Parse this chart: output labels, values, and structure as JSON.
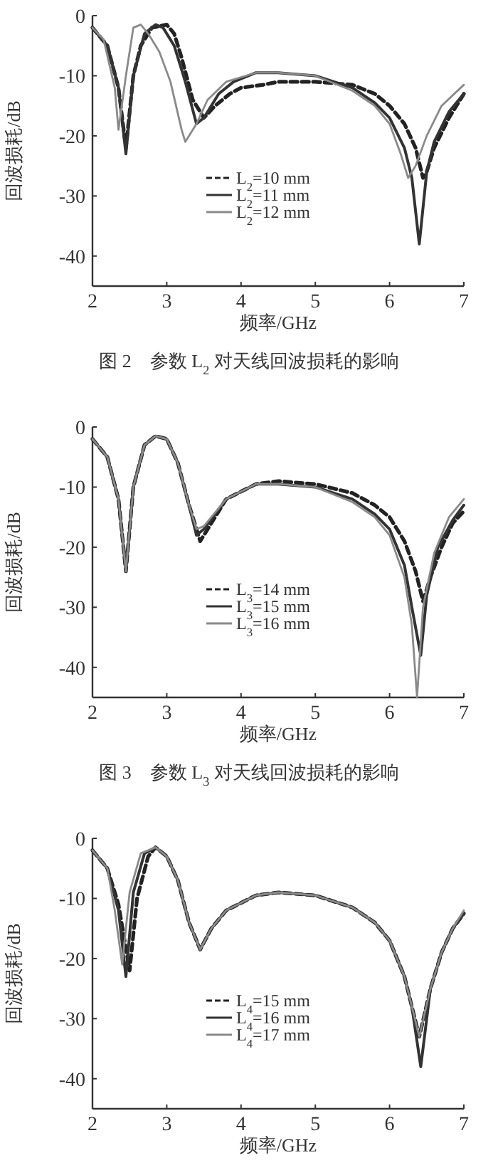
{
  "chart_data": [
    {
      "type": "line",
      "xlabel": "频率/GHz",
      "ylabel": "回波损耗/dB",
      "annotations": [
        "图 2　参数 L$_{2}$ 对天线回波损耗的影响"
      ],
      "xlim": [
        2,
        7
      ],
      "ylim": [
        -45,
        0
      ],
      "xticks": [
        2,
        3,
        4,
        5,
        6,
        7
      ],
      "yticks": [
        0,
        -10,
        -20,
        -30,
        -40
      ],
      "legend": "bottom",
      "series": [
        {
          "name": "L$_{2}$=10 mm",
          "color": "#222222",
          "line_style": "dashed",
          "x": [
            2,
            2.2,
            2.35,
            2.45,
            2.55,
            2.65,
            2.8,
            3.0,
            3.1,
            3.2,
            3.35,
            3.5,
            3.65,
            3.85,
            4.0,
            4.3,
            4.5,
            5,
            5.5,
            5.8,
            6.0,
            6.2,
            6.35,
            6.45,
            6.5,
            6.6,
            6.8,
            7
          ],
          "values": [
            -2,
            -5,
            -12,
            -22,
            -10,
            -5,
            -2,
            -1.5,
            -3,
            -7,
            -14,
            -17,
            -15,
            -13,
            -12,
            -11.5,
            -11,
            -11,
            -11.5,
            -13,
            -15,
            -18,
            -22,
            -27,
            -26,
            -22,
            -17,
            -13
          ]
        },
        {
          "name": "L$_{2}$=11 mm",
          "color": "#333333",
          "line_style": "solid",
          "x": [
            2,
            2.2,
            2.35,
            2.45,
            2.55,
            2.7,
            2.85,
            2.95,
            3.1,
            3.25,
            3.4,
            3.5,
            3.7,
            3.9,
            4.2,
            4.5,
            5,
            5.5,
            5.8,
            6.0,
            6.2,
            6.3,
            6.4,
            6.5,
            6.6,
            6.8,
            7
          ],
          "values": [
            -2,
            -5,
            -12,
            -23,
            -10,
            -3,
            -1.5,
            -2,
            -5,
            -11,
            -18,
            -17,
            -13,
            -11,
            -9.5,
            -9.5,
            -10,
            -12,
            -14.5,
            -17,
            -22,
            -27,
            -38,
            -26,
            -21,
            -16,
            -13
          ]
        },
        {
          "name": "L$_{2}$=12 mm",
          "color": "#8a8a8a",
          "line_style": "solid",
          "x": [
            2,
            2.15,
            2.3,
            2.35,
            2.45,
            2.55,
            2.65,
            2.75,
            2.9,
            3.05,
            3.2,
            3.25,
            3.4,
            3.55,
            3.8,
            4.2,
            4.5,
            5,
            5.5,
            5.8,
            6.0,
            6.15,
            6.25,
            6.35,
            6.5,
            6.7,
            7
          ],
          "values": [
            -2,
            -4,
            -12,
            -19,
            -10,
            -2,
            -1.5,
            -3,
            -6,
            -11,
            -19,
            -21,
            -18,
            -14,
            -11,
            -9.5,
            -9.5,
            -10,
            -12.5,
            -15,
            -18,
            -23,
            -27,
            -25,
            -20,
            -15,
            -11.5
          ]
        }
      ]
    },
    {
      "type": "line",
      "xlabel": "频率/GHz",
      "ylabel": "回波损耗/dB",
      "annotations": [
        "图 3　参数 L$_{3}$ 对天线回波损耗的影响"
      ],
      "xlim": [
        2,
        7
      ],
      "ylim": [
        -45,
        0
      ],
      "xticks": [
        2,
        3,
        4,
        5,
        6,
        7
      ],
      "yticks": [
        0,
        -10,
        -20,
        -30,
        -40
      ],
      "legend": "bottom",
      "series": [
        {
          "name": "L$_{3}$=14 mm",
          "color": "#222222",
          "line_style": "dashed",
          "x": [
            2,
            2.2,
            2.35,
            2.45,
            2.55,
            2.7,
            2.85,
            3.0,
            3.15,
            3.3,
            3.45,
            3.55,
            3.8,
            4.2,
            4.5,
            5,
            5.5,
            5.8,
            6.0,
            6.2,
            6.35,
            6.45,
            6.55,
            6.7,
            6.85,
            7
          ],
          "values": [
            -2,
            -5,
            -12,
            -24,
            -10,
            -3,
            -1.5,
            -2,
            -6,
            -13,
            -19,
            -17,
            -12,
            -9.5,
            -9,
            -9.5,
            -11,
            -13,
            -15,
            -19,
            -24,
            -29,
            -25,
            -20,
            -16,
            -14
          ]
        },
        {
          "name": "L$_{3}$=15 mm",
          "color": "#333333",
          "line_style": "solid",
          "x": [
            2,
            2.2,
            2.35,
            2.45,
            2.55,
            2.7,
            2.85,
            3.0,
            3.15,
            3.3,
            3.4,
            3.5,
            3.8,
            4.2,
            4.5,
            5,
            5.5,
            5.8,
            6.0,
            6.2,
            6.3,
            6.42,
            6.5,
            6.65,
            6.85,
            7
          ],
          "values": [
            -2,
            -5,
            -12,
            -24,
            -10,
            -3,
            -1.5,
            -2,
            -6,
            -13,
            -18,
            -17,
            -12,
            -9.5,
            -9.5,
            -10,
            -12,
            -14.5,
            -17,
            -23,
            -30,
            -38,
            -28,
            -20,
            -15.5,
            -13
          ]
        },
        {
          "name": "L$_{3}$=16 mm",
          "color": "#8a8a8a",
          "line_style": "solid",
          "x": [
            2,
            2.2,
            2.35,
            2.45,
            2.55,
            2.7,
            2.85,
            3.0,
            3.15,
            3.3,
            3.4,
            3.5,
            3.8,
            4.2,
            4.5,
            5,
            5.5,
            5.8,
            6.0,
            6.2,
            6.3,
            6.37,
            6.45,
            6.6,
            6.8,
            7
          ],
          "values": [
            -2,
            -5,
            -12,
            -24,
            -10,
            -3,
            -1.5,
            -2,
            -6,
            -13,
            -17,
            -16.5,
            -12,
            -9.5,
            -9.5,
            -10,
            -12.5,
            -15,
            -18,
            -25,
            -33,
            -45,
            -30,
            -21,
            -15,
            -12
          ]
        }
      ]
    },
    {
      "type": "line",
      "xlabel": "频率/GHz",
      "ylabel": "回波损耗/dB",
      "xlim": [
        2,
        7
      ],
      "ylim": [
        -45,
        0
      ],
      "xticks": [
        2,
        3,
        4,
        5,
        6,
        7
      ],
      "yticks": [
        0,
        -10,
        -20,
        -30,
        -40
      ],
      "legend": "bottom",
      "series": [
        {
          "name": "L$_{4}$=15 mm",
          "color": "#222222",
          "line_style": "dashed",
          "x": [
            2,
            2.2,
            2.35,
            2.5,
            2.6,
            2.75,
            2.85,
            3.0,
            3.15,
            3.3,
            3.45,
            3.6,
            3.8,
            4.2,
            4.5,
            5,
            5.5,
            5.8,
            6.0,
            6.2,
            6.3,
            6.4,
            6.55,
            6.7,
            6.85,
            7
          ],
          "values": [
            -2,
            -5,
            -11,
            -22,
            -10,
            -3,
            -1.5,
            -3,
            -7,
            -14,
            -18.5,
            -15,
            -12,
            -9.5,
            -9,
            -9.5,
            -11.5,
            -14,
            -17,
            -23,
            -28,
            -33,
            -25,
            -19,
            -15,
            -12.5
          ]
        },
        {
          "name": "L$_{4}$=16 mm",
          "color": "#333333",
          "line_style": "solid",
          "x": [
            2,
            2.2,
            2.35,
            2.45,
            2.55,
            2.7,
            2.85,
            3.0,
            3.15,
            3.3,
            3.45,
            3.6,
            3.8,
            4.2,
            4.5,
            5,
            5.5,
            5.8,
            6.0,
            6.2,
            6.3,
            6.42,
            6.55,
            6.7,
            6.85,
            7
          ],
          "values": [
            -2,
            -5,
            -12,
            -23,
            -9,
            -2.5,
            -1.5,
            -3,
            -7,
            -14,
            -18.5,
            -15,
            -12,
            -9.5,
            -9,
            -9.5,
            -11.5,
            -14,
            -17,
            -23,
            -28,
            -38,
            -25,
            -19,
            -15,
            -12.5
          ]
        },
        {
          "name": "L$_{4}$=17 mm",
          "color": "#8a8a8a",
          "line_style": "solid",
          "x": [
            2,
            2.2,
            2.3,
            2.4,
            2.5,
            2.65,
            2.85,
            3.0,
            3.15,
            3.3,
            3.45,
            3.6,
            3.8,
            4.2,
            4.5,
            5,
            5.5,
            5.8,
            6.0,
            6.2,
            6.3,
            6.4,
            6.55,
            6.7,
            6.85,
            7
          ],
          "values": [
            -2,
            -5,
            -12,
            -21,
            -9,
            -2.5,
            -1.5,
            -3,
            -7,
            -14,
            -18.5,
            -15,
            -12,
            -9.5,
            -9,
            -9.5,
            -11.5,
            -14,
            -17,
            -23,
            -28,
            -33,
            -25,
            -19,
            -15,
            -12
          ]
        }
      ]
    }
  ]
}
